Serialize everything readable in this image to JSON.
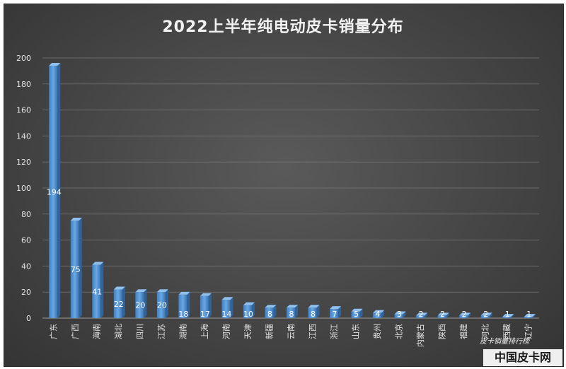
{
  "chart_data": {
    "type": "bar",
    "title": "2022上半年纯电动皮卡销量分布",
    "categories": [
      "广东",
      "广西",
      "海南",
      "湖北",
      "四川",
      "江苏",
      "湖南",
      "上海",
      "河南",
      "天津",
      "新疆",
      "云南",
      "江西",
      "浙江",
      "山东",
      "贵州",
      "北京",
      "内蒙古",
      "陕西",
      "福建",
      "河北",
      "西藏",
      "辽宁"
    ],
    "values": [
      194,
      75,
      41,
      22,
      20,
      20,
      18,
      17,
      14,
      10,
      8,
      8,
      8,
      7,
      5,
      4,
      3,
      2,
      2,
      2,
      2,
      1,
      1
    ],
    "ylim": [
      0,
      200
    ],
    "yticks": [
      0,
      20,
      40,
      60,
      80,
      100,
      120,
      140,
      160,
      180,
      200
    ],
    "grid": true,
    "bar_color": "#5b9bd5",
    "xlabel": "",
    "ylabel": ""
  },
  "watermark": {
    "caption": "皮卡销量排行榜",
    "brand": "中国皮卡网"
  }
}
